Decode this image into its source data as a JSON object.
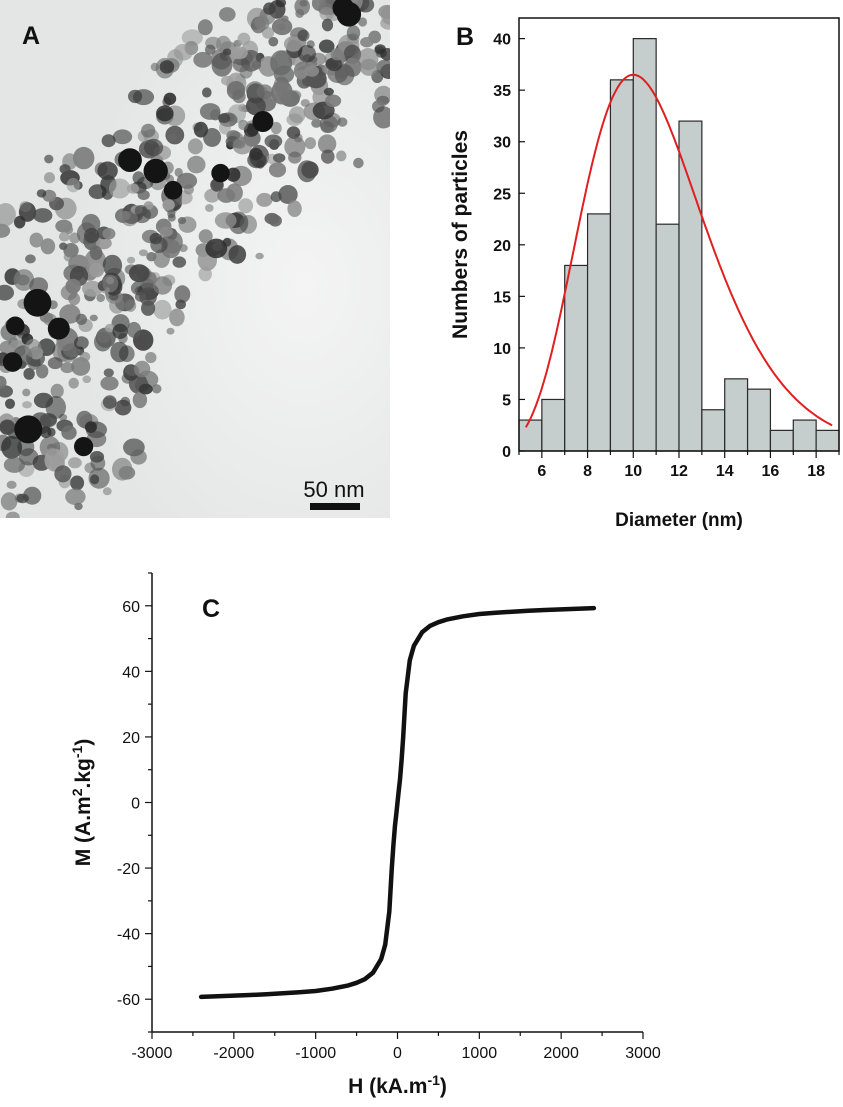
{
  "panels": {
    "a": {
      "label": "A",
      "scale_bar_text": "50 nm"
    },
    "b": {
      "label": "B"
    },
    "c": {
      "label": "C"
    }
  },
  "chart_data": [
    {
      "panel": "B",
      "type": "bar",
      "xlabel": "Diameter (nm)",
      "ylabel": "Numbers of particles",
      "xlim": [
        5,
        19
      ],
      "ylim": [
        0,
        42
      ],
      "xticks": [
        6,
        8,
        10,
        12,
        14,
        16,
        18
      ],
      "yticks": [
        0,
        5,
        10,
        15,
        20,
        25,
        30,
        35,
        40
      ],
      "bin_width": 1,
      "bin_starts": [
        5,
        6,
        7,
        8,
        9,
        10,
        11,
        12,
        13,
        14,
        15,
        16,
        17,
        18
      ],
      "values": [
        3,
        5,
        18,
        23,
        36,
        40,
        22,
        32,
        4,
        7,
        6,
        2,
        3,
        2
      ],
      "bar_color": "#c5cdcd",
      "fit": {
        "type": "lognormal",
        "center": 10,
        "peak": 36.5,
        "range": [
          5.3,
          18.7
        ],
        "color": "#e02020"
      }
    },
    {
      "panel": "C",
      "type": "line",
      "xlabel": "H (kA.m-1)",
      "ylabel": "M (A.m2.kg-1)",
      "xlim": [
        -3000,
        3000
      ],
      "ylim": [
        -70,
        70
      ],
      "xticks": [
        -3000,
        -2000,
        -1000,
        0,
        1000,
        2000,
        3000
      ],
      "yticks": [
        -60,
        -40,
        -20,
        0,
        20,
        40,
        60
      ],
      "series": [
        {
          "x": [
            -2400,
            -2200,
            -2000,
            -1800,
            -1600,
            -1400,
            -1200,
            -1000,
            -800,
            -600,
            -500,
            -400,
            -300,
            -200,
            -150,
            -100,
            -70,
            -50,
            -30,
            -15,
            0,
            15,
            30,
            50,
            70,
            100,
            150,
            200,
            300,
            400,
            500,
            600,
            800,
            1000,
            1200,
            1400,
            1600,
            1800,
            2000,
            2200,
            2400
          ],
          "y": [
            -59.3,
            -59.1,
            -58.9,
            -58.7,
            -58.5,
            -58.2,
            -57.9,
            -57.5,
            -56.8,
            -55.8,
            -55.0,
            -53.9,
            -51.9,
            -47.8,
            -43.4,
            -33.3,
            -20,
            -13,
            -7,
            -3.5,
            0,
            3.5,
            7,
            13,
            20,
            33.3,
            43.4,
            47.8,
            51.9,
            53.9,
            55.0,
            55.8,
            56.8,
            57.5,
            57.9,
            58.2,
            58.5,
            58.7,
            58.9,
            59.1,
            59.3
          ],
          "color": "#111111"
        }
      ]
    }
  ]
}
